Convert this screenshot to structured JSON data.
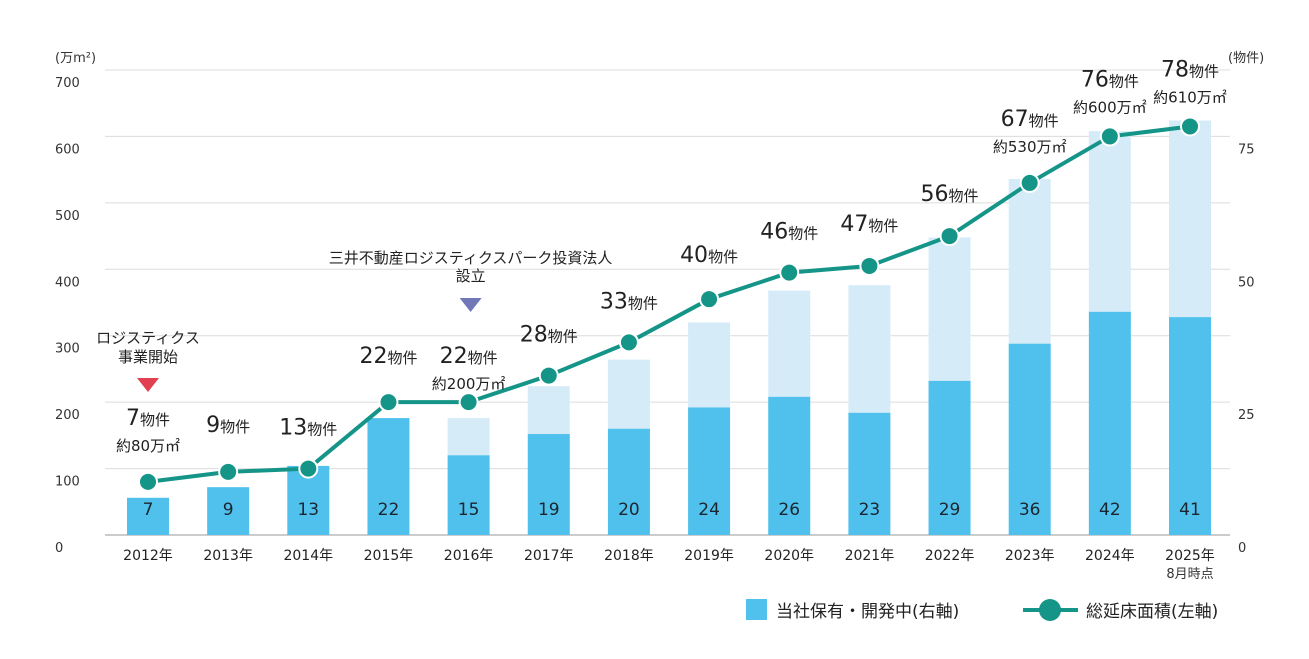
{
  "chart_data": {
    "type": "bar",
    "unit_left": "(万m²)",
    "unit_right": "(物件)",
    "left_axis": {
      "min": 0,
      "max": 700,
      "ticks": [
        0,
        100,
        200,
        300,
        400,
        500,
        600,
        700
      ]
    },
    "right_axis": {
      "min": 0,
      "max": 87.5,
      "ticks": [
        0,
        25,
        50,
        75
      ]
    },
    "categories": [
      "2012年",
      "2013年",
      "2014年",
      "2015年",
      "2016年",
      "2017年",
      "2018年",
      "2019年",
      "2020年",
      "2021年",
      "2022年",
      "2023年",
      "2024年",
      "2025年"
    ],
    "category_sublabels": [
      "",
      "",
      "",
      "",
      "",
      "",
      "",
      "",
      "",
      "",
      "",
      "",
      "",
      "8月時点"
    ],
    "series": [
      {
        "name": "当社保有・開発中(右軸)",
        "axis": "right",
        "values": [
          7,
          9,
          13,
          22,
          15,
          19,
          20,
          24,
          26,
          23,
          29,
          36,
          42,
          41
        ],
        "color": "#4fc1ec"
      },
      {
        "name": "",
        "axis": "right",
        "values": [
          7,
          9,
          13,
          22,
          22,
          28,
          33,
          40,
          46,
          47,
          56,
          67,
          76,
          78
        ],
        "color": "#d5ecf8"
      },
      {
        "name": "総延床面積(左軸)",
        "axis": "left",
        "type": "line",
        "values": [
          80,
          95,
          100,
          200,
          200,
          240,
          290,
          355,
          395,
          405,
          450,
          530,
          600,
          615
        ],
        "color": "#159488"
      }
    ],
    "count_labels": [
      {
        "num": "7",
        "unit": "物件"
      },
      {
        "num": "9",
        "unit": "物件"
      },
      {
        "num": "13",
        "unit": "物件"
      },
      {
        "num": "22",
        "unit": "物件"
      },
      {
        "num": "22",
        "unit": "物件"
      },
      {
        "num": "28",
        "unit": "物件"
      },
      {
        "num": "33",
        "unit": "物件"
      },
      {
        "num": "40",
        "unit": "物件"
      },
      {
        "num": "46",
        "unit": "物件"
      },
      {
        "num": "47",
        "unit": "物件"
      },
      {
        "num": "56",
        "unit": "物件"
      },
      {
        "num": "67",
        "unit": "物件"
      },
      {
        "num": "76",
        "unit": "物件"
      },
      {
        "num": "78",
        "unit": "物件"
      }
    ],
    "area_labels": [
      "約80万㎡",
      "",
      "",
      "",
      "約200万㎡",
      "",
      "",
      "",
      "",
      "",
      "",
      "約530万㎡",
      "約600万㎡",
      "約610万㎡"
    ],
    "annotations": [
      {
        "lines": [
          "ロジスティクス",
          "事業開始"
        ],
        "category_index": 0,
        "color": "#e0404f",
        "marker_color": "#e0404f"
      },
      {
        "lines": [
          "三井不動産ロジスティクスパーク投資法人",
          "設立"
        ],
        "category_index": 4,
        "color": "#3a6db0",
        "marker_color": "#7277b8"
      }
    ],
    "grid": true,
    "legend_position": "bottom-right"
  }
}
